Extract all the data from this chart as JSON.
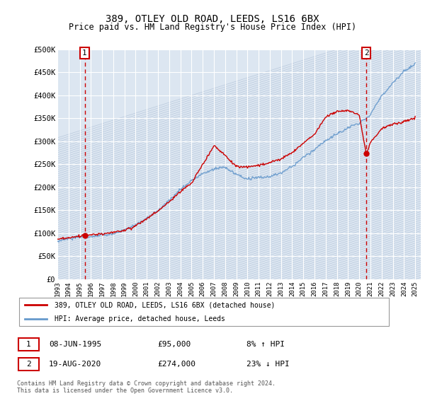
{
  "title": "389, OTLEY OLD ROAD, LEEDS, LS16 6BX",
  "subtitle": "Price paid vs. HM Land Registry's House Price Index (HPI)",
  "ytick_vals": [
    0,
    50000,
    100000,
    150000,
    200000,
    250000,
    300000,
    350000,
    400000,
    450000,
    500000
  ],
  "ylim": [
    0,
    500000
  ],
  "xlim_start": 1993.0,
  "xlim_end": 2025.5,
  "background_color": "#ffffff",
  "plot_bg_color": "#dce6f1",
  "hatch_color": "#b8c8dc",
  "grid_color": "#ffffff",
  "hpi_color": "#6699cc",
  "sale_color": "#cc0000",
  "marker_color": "#cc0000",
  "vline_color": "#cc0000",
  "annotation_box_color": "#cc0000",
  "sale1": {
    "date_x": 1995.44,
    "price": 95000,
    "label": "1",
    "date_str": "08-JUN-1995",
    "price_str": "£95,000",
    "hpi_str": "8% ↑ HPI"
  },
  "sale2": {
    "date_x": 2020.63,
    "price": 274000,
    "label": "2",
    "date_str": "19-AUG-2020",
    "price_str": "£274,000",
    "hpi_str": "23% ↓ HPI"
  },
  "legend_label1": "389, OTLEY OLD ROAD, LEEDS, LS16 6BX (detached house)",
  "legend_label2": "HPI: Average price, detached house, Leeds",
  "footnote": "Contains HM Land Registry data © Crown copyright and database right 2024.\nThis data is licensed under the Open Government Licence v3.0.",
  "xtick_years": [
    1993,
    1994,
    1995,
    1996,
    1997,
    1998,
    1999,
    2000,
    2001,
    2002,
    2003,
    2004,
    2005,
    2006,
    2007,
    2008,
    2009,
    2010,
    2011,
    2012,
    2013,
    2014,
    2015,
    2016,
    2017,
    2018,
    2019,
    2020,
    2021,
    2022,
    2023,
    2024,
    2025
  ]
}
